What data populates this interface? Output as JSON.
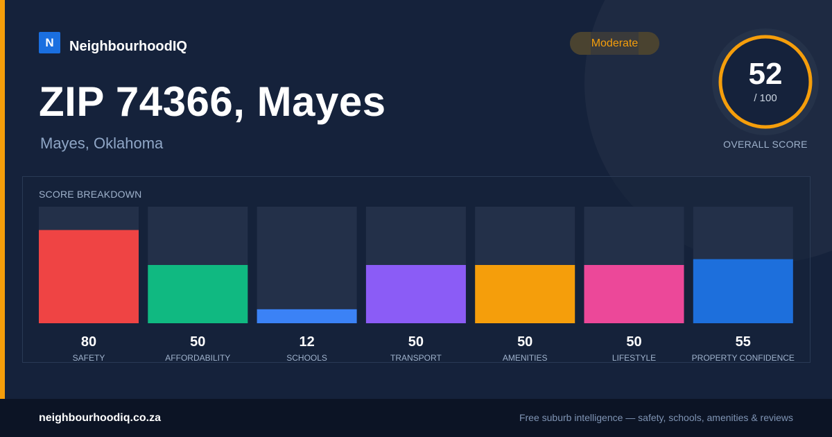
{
  "brand": {
    "logo_letter": "N",
    "name": "NeighbourhoodIQ"
  },
  "page": {
    "title": "ZIP 74366, Mayes",
    "subtitle": "Mayes, Oklahoma"
  },
  "badge": {
    "label": "Moderate",
    "color": "#f59e0b"
  },
  "overall": {
    "score": "52",
    "max_label": "/ 100",
    "label": "OVERALL SCORE",
    "score_value": 52,
    "ring_color": "#f59e0b"
  },
  "breakdown": {
    "title": "SCORE BREAKDOWN"
  },
  "chart_data": {
    "type": "bar",
    "categories": [
      "SAFETY",
      "AFFORDABILITY",
      "SCHOOLS",
      "TRANSPORT",
      "AMENITIES",
      "LIFESTYLE",
      "PROPERTY CONFIDENCE"
    ],
    "values": [
      80,
      50,
      12,
      50,
      50,
      50,
      55
    ],
    "colors": [
      "#ef4444",
      "#10b981",
      "#3b82f6",
      "#8b5cf6",
      "#f59e0b",
      "#ec4899",
      "#1d6fdc"
    ],
    "ylim": [
      0,
      100
    ],
    "title": "SCORE BREAKDOWN"
  },
  "footer": {
    "url": "neighbourhoodiq.co.za",
    "tagline": "Free suburb intelligence — safety, schools, amenities & reviews"
  }
}
